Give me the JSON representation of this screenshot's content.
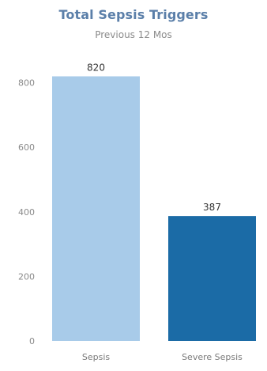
{
  "chart_data": {
    "type": "bar",
    "title": "Total Sepsis Triggers",
    "subtitle": "Previous 12 Mos",
    "categories": [
      "Sepsis",
      "Severe Sepsis"
    ],
    "values": [
      820,
      387
    ],
    "value_labels": [
      "820",
      "387"
    ],
    "colors": [
      "#a8cbe9",
      "#1b6ba6"
    ],
    "ylim": [
      0,
      880
    ],
    "yticks": [
      0,
      200,
      400,
      600,
      800
    ],
    "ytick_labels": [
      "0",
      "200",
      "400",
      "600",
      "800"
    ],
    "xlabel": "",
    "ylabel": "",
    "grid": false,
    "legend": "none"
  }
}
